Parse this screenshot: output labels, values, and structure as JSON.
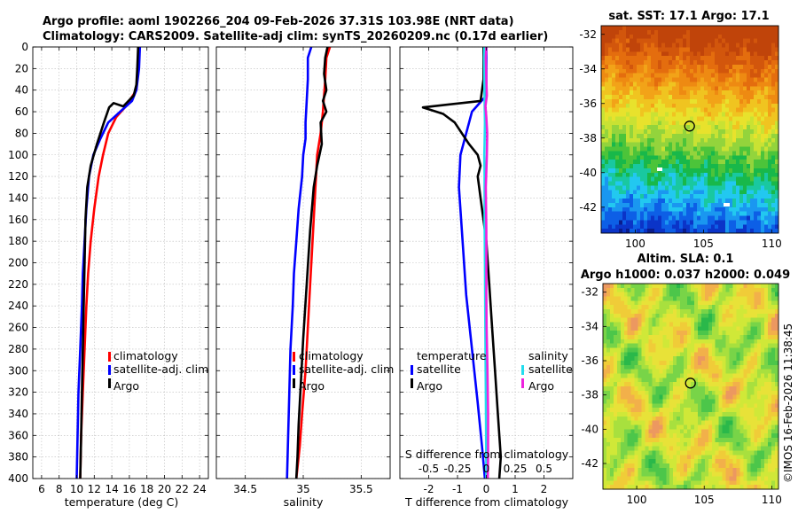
{
  "title": {
    "line1": "Argo profile: aoml 1902266_204 09-Feb-2026 37.31S 103.98E (NRT data)",
    "line2": "Climatology: CARS2009. Satellite-adj clim: synTS_20260209.nc (0.17d earlier)"
  },
  "watermark": "©IMOS 16-Feb-2026 11:38:45",
  "depth_ticks": [
    0,
    20,
    40,
    60,
    80,
    100,
    120,
    140,
    160,
    180,
    200,
    220,
    240,
    260,
    280,
    300,
    320,
    340,
    360,
    380,
    400
  ],
  "colors": {
    "climatology": "#ff0000",
    "satellite": "#0000ff",
    "argo": "#000000",
    "sal_sat": "#22ddee",
    "sal_argo": "#ee22dd"
  },
  "chart_data": [
    {
      "type": "line",
      "name": "temperature-profile",
      "xlabel": "temperature (deg C)",
      "ylabel": "",
      "xlim": [
        5,
        25
      ],
      "ylim": [
        0,
        400
      ],
      "xticks": [
        6,
        8,
        10,
        12,
        14,
        16,
        18,
        20,
        22,
        24
      ],
      "legend": [
        "climatology",
        "satellite-adj. clim",
        "Argo"
      ],
      "series": [
        {
          "name": "climatology",
          "color": "#ff0000",
          "points": [
            [
              17.1,
              0
            ],
            [
              17.0,
              20
            ],
            [
              16.8,
              40
            ],
            [
              15.6,
              55
            ],
            [
              14.5,
              65
            ],
            [
              13.6,
              80
            ],
            [
              13.0,
              100
            ],
            [
              12.5,
              120
            ],
            [
              12.0,
              150
            ],
            [
              11.6,
              180
            ],
            [
              11.3,
              210
            ],
            [
              11.1,
              240
            ],
            [
              10.9,
              280
            ],
            [
              10.7,
              320
            ],
            [
              10.5,
              360
            ],
            [
              10.4,
              400
            ]
          ]
        },
        {
          "name": "satellite-adj. clim",
          "color": "#0000ff",
          "points": [
            [
              17.2,
              0
            ],
            [
              17.1,
              20
            ],
            [
              16.8,
              40
            ],
            [
              16.3,
              50
            ],
            [
              13.6,
              70
            ],
            [
              12.7,
              85
            ],
            [
              11.9,
              100
            ],
            [
              11.4,
              120
            ],
            [
              11.1,
              150
            ],
            [
              10.9,
              180
            ],
            [
              10.7,
              210
            ],
            [
              10.6,
              240
            ],
            [
              10.4,
              280
            ],
            [
              10.2,
              320
            ],
            [
              10.1,
              360
            ],
            [
              10.0,
              400
            ]
          ]
        },
        {
          "name": "Argo",
          "color": "#000000",
          "points": [
            [
              17.0,
              0
            ],
            [
              16.9,
              20
            ],
            [
              16.8,
              35
            ],
            [
              16.5,
              45
            ],
            [
              15.3,
              55
            ],
            [
              14.2,
              52
            ],
            [
              13.7,
              56
            ],
            [
              13.1,
              70
            ],
            [
              12.3,
              90
            ],
            [
              11.6,
              110
            ],
            [
              11.2,
              130
            ],
            [
              11.0,
              160
            ],
            [
              10.9,
              200
            ],
            [
              10.8,
              240
            ],
            [
              10.7,
              280
            ],
            [
              10.6,
              320
            ],
            [
              10.5,
              360
            ],
            [
              10.4,
              400
            ]
          ]
        }
      ]
    },
    {
      "type": "line",
      "name": "salinity-profile",
      "xlabel": "salinity",
      "xlim": [
        34.25,
        35.75
      ],
      "ylim": [
        0,
        400
      ],
      "xticks": [
        34.5,
        35,
        35.5
      ],
      "xtick_labels": [
        "34.5",
        "35",
        "35.5"
      ],
      "legend": [
        "climatology",
        "satellite-adj. clim",
        "Argo"
      ],
      "series": [
        {
          "name": "climatology",
          "color": "#ff0000",
          "points": [
            [
              35.23,
              0
            ],
            [
              35.2,
              10
            ],
            [
              35.19,
              30
            ],
            [
              35.17,
              60
            ],
            [
              35.15,
              80
            ],
            [
              35.12,
              100
            ],
            [
              35.1,
              140
            ],
            [
              35.08,
              180
            ],
            [
              35.06,
              220
            ],
            [
              35.04,
              260
            ],
            [
              35.02,
              300
            ],
            [
              34.99,
              340
            ],
            [
              34.97,
              370
            ],
            [
              34.94,
              400
            ]
          ]
        },
        {
          "name": "satellite-adj. clim",
          "color": "#0000ff",
          "points": [
            [
              35.07,
              0
            ],
            [
              35.04,
              10
            ],
            [
              35.04,
              30
            ],
            [
              35.03,
              50
            ],
            [
              35.02,
              70
            ],
            [
              35.02,
              85
            ],
            [
              35.0,
              100
            ],
            [
              34.99,
              120
            ],
            [
              34.96,
              150
            ],
            [
              34.94,
              180
            ],
            [
              34.92,
              210
            ],
            [
              34.91,
              240
            ],
            [
              34.89,
              280
            ],
            [
              34.88,
              320
            ],
            [
              34.87,
              360
            ],
            [
              34.86,
              400
            ]
          ]
        },
        {
          "name": "Argo",
          "color": "#000000",
          "points": [
            [
              35.21,
              0
            ],
            [
              35.19,
              10
            ],
            [
              35.18,
              25
            ],
            [
              35.2,
              40
            ],
            [
              35.17,
              50
            ],
            [
              35.2,
              60
            ],
            [
              35.15,
              70
            ],
            [
              35.16,
              90
            ],
            [
              35.14,
              100
            ],
            [
              35.12,
              110
            ],
            [
              35.09,
              130
            ],
            [
              35.06,
              170
            ],
            [
              35.03,
              220
            ],
            [
              35.0,
              270
            ],
            [
              34.98,
              310
            ],
            [
              34.96,
              350
            ],
            [
              34.95,
              380
            ],
            [
              34.94,
              400
            ]
          ]
        }
      ]
    },
    {
      "type": "line",
      "name": "difference-profile",
      "xlabel": "T difference from climatology",
      "x2label": "S difference from climatology",
      "xlim": [
        -3,
        3
      ],
      "ylim": [
        0,
        400
      ],
      "xticks": [
        -2,
        -1,
        0,
        1,
        2
      ],
      "x2lim": [
        -0.75,
        0.75
      ],
      "x2ticks": [
        -0.5,
        -0.25,
        0,
        0.25,
        0.5
      ],
      "x2tick_labels": [
        "-0.5",
        "-0.25",
        "0",
        "0.25",
        "0.5"
      ],
      "legend_left_title": "temperature",
      "legend_right_title": "salinity",
      "legend": [
        "satellite",
        "Argo",
        "satellite",
        "Argo"
      ],
      "series": [
        {
          "name": "temperature satellite",
          "color": "#0000ff",
          "points": [
            [
              0.0,
              0
            ],
            [
              0.0,
              30
            ],
            [
              0.0,
              45
            ],
            [
              -0.5,
              60
            ],
            [
              -0.7,
              80
            ],
            [
              -0.9,
              100
            ],
            [
              -0.95,
              130
            ],
            [
              -0.85,
              170
            ],
            [
              -0.7,
              230
            ],
            [
              -0.5,
              280
            ],
            [
              -0.3,
              330
            ],
            [
              -0.15,
              370
            ],
            [
              -0.05,
              400
            ]
          ]
        },
        {
          "name": "temperature Argo",
          "color": "#000000",
          "points": [
            [
              -0.1,
              0
            ],
            [
              -0.1,
              30
            ],
            [
              -0.2,
              50
            ],
            [
              -2.2,
              56
            ],
            [
              -1.5,
              62
            ],
            [
              -1.1,
              70
            ],
            [
              -0.6,
              90
            ],
            [
              -0.3,
              100
            ],
            [
              -0.2,
              110
            ],
            [
              -0.3,
              120
            ],
            [
              -0.2,
              140
            ],
            [
              0.0,
              180
            ],
            [
              0.1,
              220
            ],
            [
              0.2,
              260
            ],
            [
              0.3,
              300
            ],
            [
              0.4,
              340
            ],
            [
              0.5,
              380
            ],
            [
              0.45,
              400
            ]
          ]
        },
        {
          "name": "salinity satellite",
          "color": "#22ddee",
          "points": [
            [
              -0.07,
              0
            ],
            [
              -0.08,
              10
            ],
            [
              -0.07,
              30
            ],
            [
              -0.06,
              50
            ],
            [
              -0.05,
              70
            ],
            [
              -0.06,
              90
            ],
            [
              -0.07,
              100
            ],
            [
              -0.06,
              120
            ],
            [
              -0.06,
              160
            ],
            [
              -0.05,
              200
            ],
            [
              -0.04,
              240
            ],
            [
              -0.03,
              280
            ],
            [
              -0.02,
              320
            ],
            [
              -0.01,
              360
            ],
            [
              0.0,
              400
            ]
          ]
        },
        {
          "name": "salinity Argo",
          "color": "#ee22dd",
          "points": [
            [
              0.0,
              0
            ],
            [
              -0.02,
              10
            ],
            [
              0.0,
              30
            ],
            [
              0.02,
              45
            ],
            [
              -0.03,
              55
            ],
            [
              0.0,
              65
            ],
            [
              0.03,
              80
            ],
            [
              0.02,
              100
            ],
            [
              -0.02,
              130
            ],
            [
              0.0,
              170
            ],
            [
              0.0,
              230
            ],
            [
              0.01,
              260
            ],
            [
              0.04,
              300
            ],
            [
              0.06,
              340
            ],
            [
              0.06,
              380
            ],
            [
              0.05,
              400
            ]
          ]
        }
      ]
    },
    {
      "type": "heatmap",
      "name": "sst-map",
      "title": "sat. SST: 17.1 Argo: 17.1",
      "xlim": [
        97.5,
        110.5
      ],
      "ylim": [
        -43.5,
        -31.5
      ],
      "xticks": [
        100,
        105,
        110
      ],
      "yticks": [
        -32,
        -34,
        -36,
        -38,
        -40,
        -42
      ],
      "marker": {
        "lon": 103.98,
        "lat": -37.31
      }
    },
    {
      "type": "heatmap",
      "name": "sla-map",
      "title": "Altim. SLA: 0.1",
      "subtitle": "Argo h1000: 0.037 h2000: 0.049",
      "xlim": [
        97.5,
        110.5
      ],
      "ylim": [
        -43.5,
        -31.5
      ],
      "xticks": [
        100,
        105,
        110
      ],
      "yticks": [
        -32,
        -34,
        -36,
        -38,
        -40,
        -42
      ],
      "marker": {
        "lon": 103.98,
        "lat": -37.31
      }
    }
  ]
}
